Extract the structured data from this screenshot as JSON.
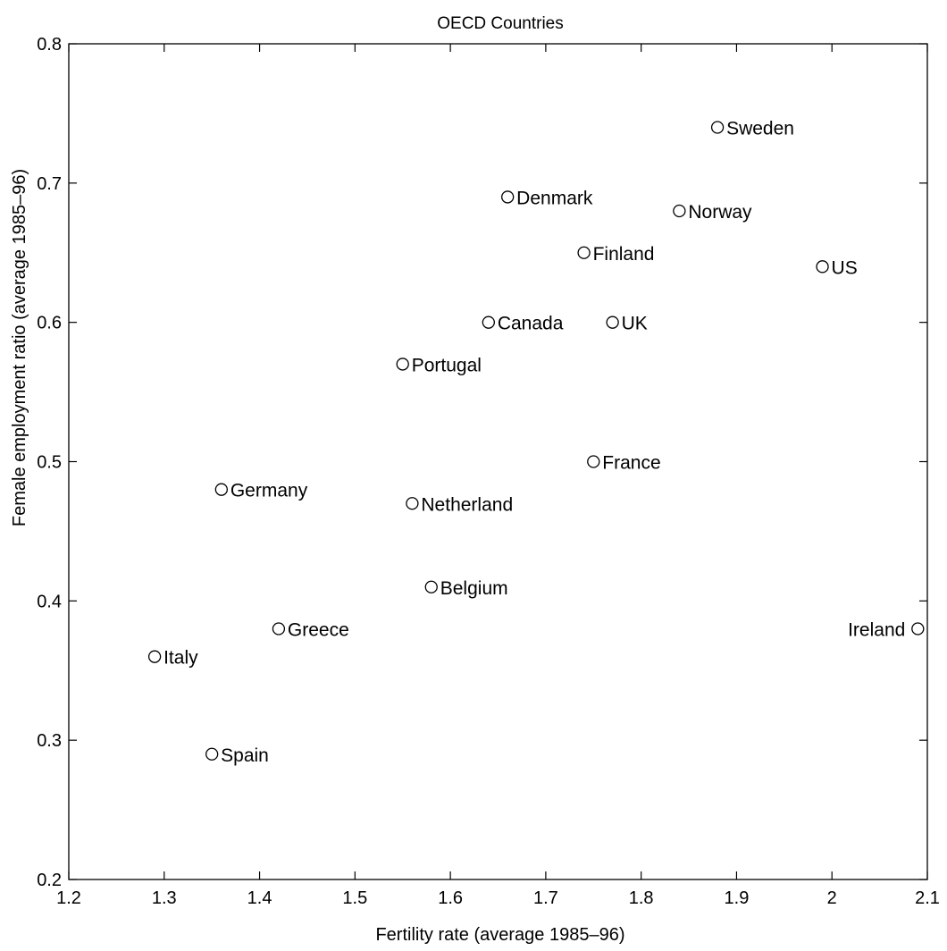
{
  "chart_data": {
    "type": "scatter",
    "title": "OECD Countries",
    "xlabel": "Fertility rate (average 1985–96)",
    "ylabel": "Female employment ratio (average 1985–96)",
    "xlim": [
      1.2,
      2.1
    ],
    "ylim": [
      0.2,
      0.8
    ],
    "xticks": [
      1.2,
      1.3,
      1.4,
      1.5,
      1.6,
      1.7,
      1.8,
      1.9,
      2.0,
      2.1
    ],
    "xtick_labels": [
      "1.2",
      "1.3",
      "1.4",
      "1.5",
      "1.6",
      "1.7",
      "1.8",
      "1.9",
      "2",
      "2.1"
    ],
    "yticks": [
      0.2,
      0.3,
      0.4,
      0.5,
      0.6,
      0.7,
      0.8
    ],
    "ytick_labels": [
      "0.2",
      "0.3",
      "0.4",
      "0.5",
      "0.6",
      "0.7",
      "0.8"
    ],
    "grid": false,
    "marker": "open-circle",
    "colors": {
      "marker": "#000000",
      "axes": "#000000",
      "background": "#ffffff"
    },
    "points": [
      {
        "label": "Sweden",
        "x": 1.88,
        "y": 0.74,
        "label_side": "right"
      },
      {
        "label": "Denmark",
        "x": 1.66,
        "y": 0.69,
        "label_side": "right"
      },
      {
        "label": "Norway",
        "x": 1.84,
        "y": 0.68,
        "label_side": "right"
      },
      {
        "label": "Finland",
        "x": 1.74,
        "y": 0.65,
        "label_side": "right"
      },
      {
        "label": "US",
        "x": 1.99,
        "y": 0.64,
        "label_side": "right"
      },
      {
        "label": "Canada",
        "x": 1.64,
        "y": 0.6,
        "label_side": "right"
      },
      {
        "label": "UK",
        "x": 1.77,
        "y": 0.6,
        "label_side": "right"
      },
      {
        "label": "Portugal",
        "x": 1.55,
        "y": 0.57,
        "label_side": "right"
      },
      {
        "label": "France",
        "x": 1.75,
        "y": 0.5,
        "label_side": "right"
      },
      {
        "label": "Germany",
        "x": 1.36,
        "y": 0.48,
        "label_side": "right"
      },
      {
        "label": "Netherland",
        "x": 1.56,
        "y": 0.47,
        "label_side": "right"
      },
      {
        "label": "Belgium",
        "x": 1.58,
        "y": 0.41,
        "label_side": "right"
      },
      {
        "label": "Greece",
        "x": 1.42,
        "y": 0.38,
        "label_side": "right"
      },
      {
        "label": "Ireland",
        "x": 2.09,
        "y": 0.38,
        "label_side": "left"
      },
      {
        "label": "Italy",
        "x": 1.29,
        "y": 0.36,
        "label_side": "right"
      },
      {
        "label": "Spain",
        "x": 1.35,
        "y": 0.29,
        "label_side": "right"
      }
    ]
  }
}
